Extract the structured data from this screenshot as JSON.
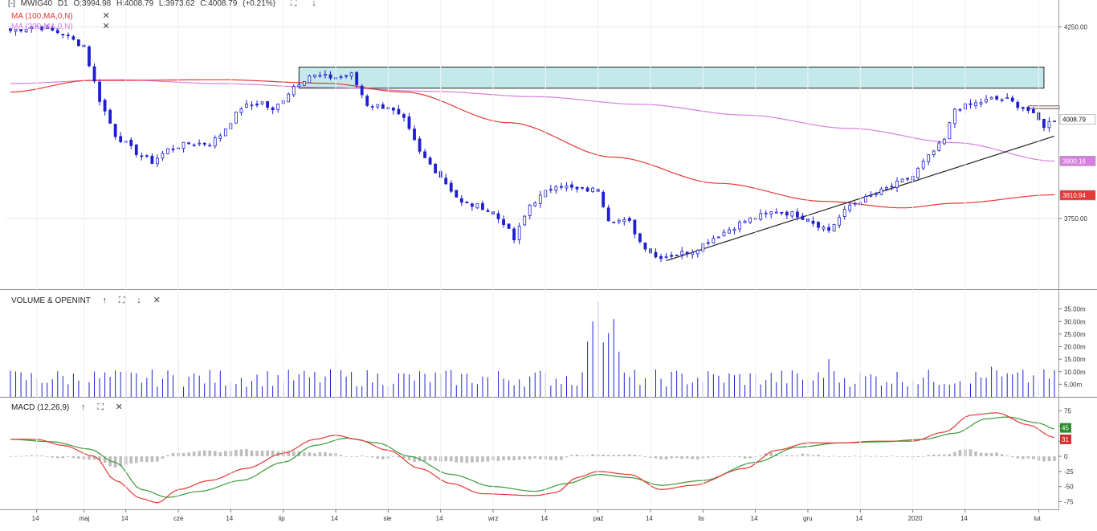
{
  "header": {
    "collapse_symbol": "[-]",
    "symbol": "MWIG40",
    "interval": "D1",
    "open": "O:3994.98",
    "high": "H:4008.79",
    "low": "L:3973.62",
    "close": "C:4008.79",
    "change": "(+0.21%)",
    "ma100_label": "MA (100,MA,0,N)",
    "ma200_label": "MA (200,MA,0,N)",
    "remove_symbol": "✕",
    "fullscreen_symbol": "⛶",
    "down_symbol": "↓"
  },
  "volume_pane": {
    "title": "VOLUME & OPENINT",
    "up_symbol": "↑",
    "fullscreen_symbol": "⛶",
    "down_symbol": "↓",
    "close_symbol": "✕"
  },
  "macd_pane": {
    "title": "MACD (12,26,9)",
    "up_symbol": "↑",
    "fullscreen_symbol": "⛶",
    "close_symbol": "✕"
  },
  "colors": {
    "candle": "#1f1fd0",
    "ma100": "#e53935",
    "ma200": "#d77ee0",
    "zone_fill": "#c3e9eb",
    "zone_stroke": "#222222",
    "macd_line": "#e53935",
    "signal_line": "#3a9a3a",
    "histogram": "#bdbdbd",
    "grid": "#e6e6e6"
  },
  "chart_data": [
    {
      "type": "candlestick",
      "series": [
        {
          "name": "MWIG40"
        },
        {
          "name": "MA (100,MA,0,N)"
        },
        {
          "name": "MA (200,MA,0,N)"
        }
      ],
      "x_tick_labels": [
        "14",
        "maj",
        "14",
        "cze",
        "14",
        "lip",
        "14",
        "sie",
        "14",
        "wrz",
        "14",
        "paź",
        "14",
        "lis",
        "14",
        "gru",
        "14",
        "2020",
        "14",
        "lut"
      ],
      "y_tick_labels": [
        "4250.00",
        "3750.00"
      ],
      "ylim": [
        3570,
        4320
      ],
      "price_labels": {
        "last": "4008.79",
        "ma200": "3900.16",
        "ma100": "3810.94"
      },
      "annotations": [
        {
          "type": "resistance-zone",
          "y_range": [
            4090,
            4145
          ]
        },
        {
          "type": "trendline"
        }
      ]
    },
    {
      "type": "bar",
      "series": [
        {
          "name": "VOLUME & OPENINT"
        }
      ],
      "y_tick_labels": [
        "35.00m",
        "30.00m",
        "25.00m",
        "20.00m",
        "15.00m",
        "10.00m",
        "5.00m"
      ],
      "ylim": [
        0,
        40
      ]
    },
    {
      "type": "line",
      "series": [
        {
          "name": "MACD (12,26,9)"
        }
      ],
      "y_tick_labels": [
        "75",
        "50",
        "25",
        "0",
        "-25",
        "-50",
        "-75"
      ],
      "ylim": [
        -85,
        85
      ],
      "value_labels": {
        "macd": "31",
        "signal": "45"
      }
    }
  ]
}
